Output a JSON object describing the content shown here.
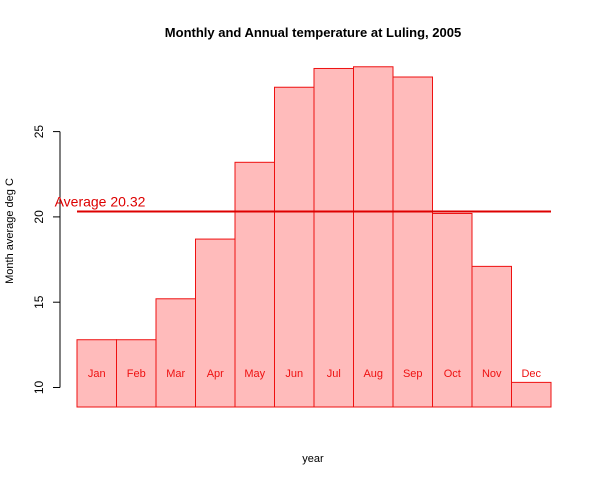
{
  "chart_data": {
    "type": "bar",
    "title": "Monthly and Annual temperature at Luling, 2005",
    "xlabel": "year",
    "ylabel": "Month average deg C",
    "categories": [
      "Jan",
      "Feb",
      "Mar",
      "Apr",
      "May",
      "Jun",
      "Jul",
      "Aug",
      "Sep",
      "Oct",
      "Nov",
      "Dec"
    ],
    "values": [
      12.8,
      12.8,
      15.2,
      18.7,
      23.2,
      27.6,
      28.7,
      28.8,
      28.2,
      20.2,
      17.1,
      10.3
    ],
    "ylim": [
      9,
      30.5
    ],
    "yticks": [
      10,
      15,
      20,
      25
    ],
    "average": {
      "label": "Average 20.32",
      "value": 20.32
    },
    "colors": {
      "bar_fill": "#ffbbbb",
      "bar_stroke": "#ee1111",
      "label": "#ee1111",
      "avg_line": "#dd0000"
    },
    "grid": false,
    "legend": "none"
  }
}
